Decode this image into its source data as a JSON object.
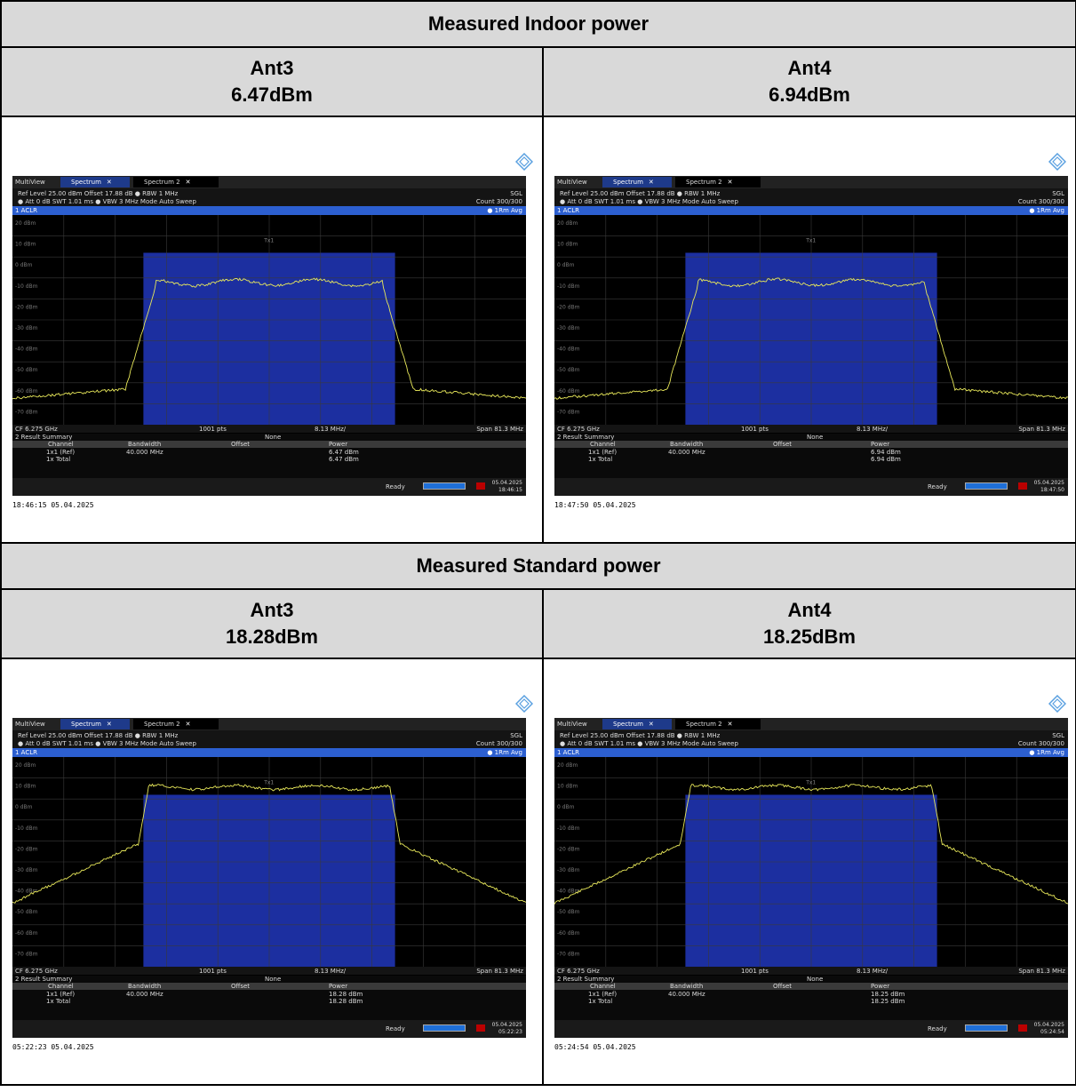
{
  "sections": [
    {
      "title": "Measured Indoor power",
      "cells": [
        {
          "antenna": "Ant3",
          "power": "6.47dBm",
          "analyzer": {
            "summary_power": "6.47 dBm",
            "summary_total": "6.47 dBm",
            "stamp": "18:46:15  05.04.2025",
            "date": "05.04.2025",
            "time": "18:46:15",
            "mode": "indoor"
          }
        },
        {
          "antenna": "Ant4",
          "power": "6.94dBm",
          "analyzer": {
            "summary_power": "6.94 dBm",
            "summary_total": "6.94 dBm",
            "stamp": "18:47:50  05.04.2025",
            "date": "05.04.2025",
            "time": "18:47:50",
            "mode": "indoor"
          }
        }
      ]
    },
    {
      "title": "Measured Standard power",
      "cells": [
        {
          "antenna": "Ant3",
          "power": "18.28dBm",
          "analyzer": {
            "summary_power": "18.28 dBm",
            "summary_total": "18.28 dBm",
            "stamp": "05:22:23  05.04.2025",
            "date": "05.04.2025",
            "time": "05:22:23",
            "mode": "standard"
          }
        },
        {
          "antenna": "Ant4",
          "power": "18.25dBm",
          "analyzer": {
            "summary_power": "18.25 dBm",
            "summary_total": "18.25 dBm",
            "stamp": "05:24:54  05.04.2025",
            "date": "05.04.2025",
            "time": "05:24:54",
            "mode": "standard"
          }
        }
      ]
    }
  ],
  "analyzer_common": {
    "multiview_label": "MultiView",
    "tab_active": "Spectrum",
    "tab_inactive": "Spectrum 2",
    "settings_line1": "Ref Level 25.00 dBm   Offset 17.88 dB  ● RBW 1 MHz",
    "settings_line2": "● Att          0 dB   SWT    1.01 ms  ● VBW 3 MHz   Mode Auto Sweep",
    "sgl": "SGL",
    "count": "Count 300/300",
    "trace_label": "1 ACLR",
    "trace_mode": "● 1Rm Avg",
    "tx_label": "Tx1",
    "cf": "CF 6.275 GHz",
    "pts": "1001 pts",
    "div": "8.13 MHz/",
    "span": "Span 81.3 MHz",
    "summary_title": "2 Result Summary",
    "summary_none": "None",
    "col_channel": "Channel",
    "col_bandwidth": "Bandwidth",
    "col_offset": "Offset",
    "col_power": "Power",
    "row1_channel": "1x1 (Ref)",
    "row1_bandwidth": "40.000 MHz",
    "row2_channel": "1x Total",
    "ready": "Ready",
    "y_ticks": [
      "20 dBm",
      "10 dBm",
      "0 dBm",
      "-10 dBm",
      "-20 dBm",
      "-30 dBm",
      "-40 dBm",
      "-50 dBm",
      "-60 dBm",
      "-70 dBm"
    ],
    "colors": {
      "trace": "#e8e85a",
      "channel_band": "#1c2fa0",
      "tab_active": "#1e3a8a",
      "aclr_bar": "#2c5fd0",
      "header_bg": "#d9d9d9"
    }
  }
}
